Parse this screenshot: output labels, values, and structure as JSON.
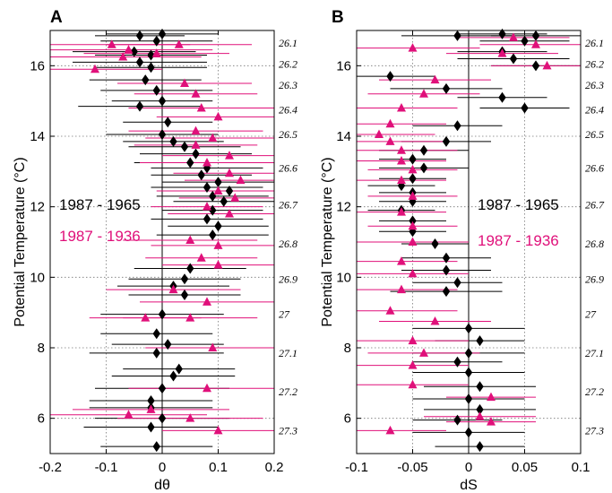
{
  "colors": {
    "black": "#000000",
    "magenta": "#e0107a"
  },
  "chart_data": [
    {
      "type": "scatter",
      "panel_label": "A",
      "xlabel": "dθ",
      "ylabel": "Potential Temperature (°C)",
      "xlim": [
        -0.2,
        0.2
      ],
      "ylim": [
        5,
        17
      ],
      "xticks": [
        "-0.2",
        "-0.1",
        "0",
        "0.1",
        "0.2"
      ],
      "yticks": [
        "6",
        "8",
        "10",
        "12",
        "14",
        "16"
      ],
      "density_labels": [
        {
          "label": "26.1",
          "y": 16.65
        },
        {
          "label": "26.2",
          "y": 16.05
        },
        {
          "label": "26.3",
          "y": 15.45
        },
        {
          "label": "26.4",
          "y": 14.75
        },
        {
          "label": "26.5",
          "y": 14.05
        },
        {
          "label": "26.6",
          "y": 13.1
        },
        {
          "label": "26.7",
          "y": 12.05
        },
        {
          "label": "26.8",
          "y": 10.95
        },
        {
          "label": "26.9",
          "y": 9.95
        },
        {
          "label": "27",
          "y": 8.95
        },
        {
          "label": "27.1",
          "y": 7.85
        },
        {
          "label": "27.2",
          "y": 6.75
        },
        {
          "label": "27.3",
          "y": 5.65
        }
      ],
      "series": [
        {
          "name": "1987 - 1965",
          "color": "#000000",
          "marker": "diamond",
          "points": [
            {
              "x": -0.04,
              "y": 16.85,
              "e": 0.08
            },
            {
              "x": 0.0,
              "y": 16.9,
              "e": 0.1
            },
            {
              "x": -0.01,
              "y": 16.7,
              "e": 0.1
            },
            {
              "x": -0.05,
              "y": 16.4,
              "e": 0.11
            },
            {
              "x": -0.02,
              "y": 16.3,
              "e": 0.1
            },
            {
              "x": -0.04,
              "y": 16.1,
              "e": 0.12
            },
            {
              "x": -0.02,
              "y": 15.95,
              "e": 0.1
            },
            {
              "x": -0.03,
              "y": 15.6,
              "e": 0.1
            },
            {
              "x": -0.01,
              "y": 15.3,
              "e": 0.1
            },
            {
              "x": 0.0,
              "y": 15.0,
              "e": 0.09
            },
            {
              "x": -0.04,
              "y": 14.85,
              "e": 0.11
            },
            {
              "x": 0.01,
              "y": 14.4,
              "e": 0.08
            },
            {
              "x": 0.0,
              "y": 14.05,
              "e": 0.1
            },
            {
              "x": 0.02,
              "y": 13.85,
              "e": 0.09
            },
            {
              "x": 0.04,
              "y": 13.7,
              "e": 0.1
            },
            {
              "x": 0.06,
              "y": 13.5,
              "e": 0.1
            },
            {
              "x": 0.05,
              "y": 13.25,
              "e": 0.1
            },
            {
              "x": 0.08,
              "y": 13.1,
              "e": 0.1
            },
            {
              "x": 0.07,
              "y": 12.9,
              "e": 0.09
            },
            {
              "x": 0.1,
              "y": 12.7,
              "e": 0.1
            },
            {
              "x": 0.08,
              "y": 12.55,
              "e": 0.1
            },
            {
              "x": 0.12,
              "y": 12.45,
              "e": 0.09
            },
            {
              "x": 0.09,
              "y": 12.3,
              "e": 0.1
            },
            {
              "x": 0.11,
              "y": 12.15,
              "e": 0.09
            },
            {
              "x": 0.09,
              "y": 11.9,
              "e": 0.09
            },
            {
              "x": 0.08,
              "y": 11.65,
              "e": 0.1
            },
            {
              "x": 0.1,
              "y": 11.45,
              "e": 0.09
            },
            {
              "x": 0.09,
              "y": 11.2,
              "e": 0.1
            },
            {
              "x": 0.05,
              "y": 10.25,
              "e": 0.1
            },
            {
              "x": 0.04,
              "y": 9.95,
              "e": 0.1
            },
            {
              "x": 0.02,
              "y": 9.75,
              "e": 0.1
            },
            {
              "x": 0.04,
              "y": 9.5,
              "e": 0.1
            },
            {
              "x": 0.0,
              "y": 8.95,
              "e": 0.11
            },
            {
              "x": -0.01,
              "y": 8.4,
              "e": 0.1
            },
            {
              "x": 0.01,
              "y": 8.1,
              "e": 0.1
            },
            {
              "x": -0.01,
              "y": 7.85,
              "e": 0.12
            },
            {
              "x": 0.03,
              "y": 7.4,
              "e": 0.1
            },
            {
              "x": 0.02,
              "y": 7.2,
              "e": 0.11
            },
            {
              "x": 0.0,
              "y": 6.85,
              "e": 0.12
            },
            {
              "x": -0.02,
              "y": 6.5,
              "e": 0.11
            },
            {
              "x": -0.02,
              "y": 6.3,
              "e": 0.11
            },
            {
              "x": 0.0,
              "y": 6.0,
              "e": 0.12
            },
            {
              "x": -0.02,
              "y": 5.75,
              "e": 0.12
            },
            {
              "x": -0.01,
              "y": 5.2,
              "e": 0.1
            }
          ]
        },
        {
          "name": "1987 - 1936",
          "color": "#e0107a",
          "marker": "triangle",
          "points": [
            {
              "x": -0.09,
              "y": 16.6,
              "e": 0.14
            },
            {
              "x": -0.06,
              "y": 16.45,
              "e": 0.15
            },
            {
              "x": -0.01,
              "y": 16.35,
              "e": 0.13
            },
            {
              "x": -0.07,
              "y": 16.25,
              "e": 0.14
            },
            {
              "x": 0.03,
              "y": 16.6,
              "e": 0.13
            },
            {
              "x": -0.12,
              "y": 15.9,
              "e": 0.12
            },
            {
              "x": 0.04,
              "y": 15.5,
              "e": 0.12
            },
            {
              "x": 0.06,
              "y": 15.2,
              "e": 0.11
            },
            {
              "x": 0.07,
              "y": 14.8,
              "e": 0.13
            },
            {
              "x": 0.1,
              "y": 14.55,
              "e": 0.11
            },
            {
              "x": 0.06,
              "y": 14.15,
              "e": 0.12
            },
            {
              "x": 0.09,
              "y": 13.95,
              "e": 0.12
            },
            {
              "x": 0.06,
              "y": 13.75,
              "e": 0.11
            },
            {
              "x": 0.12,
              "y": 13.45,
              "e": 0.12
            },
            {
              "x": 0.08,
              "y": 13.25,
              "e": 0.12
            },
            {
              "x": 0.12,
              "y": 12.95,
              "e": 0.1
            },
            {
              "x": 0.14,
              "y": 12.75,
              "e": 0.1
            },
            {
              "x": 0.1,
              "y": 12.45,
              "e": 0.11
            },
            {
              "x": 0.13,
              "y": 12.25,
              "e": 0.1
            },
            {
              "x": 0.08,
              "y": 12.0,
              "e": 0.1
            },
            {
              "x": 0.12,
              "y": 11.8,
              "e": 0.11
            },
            {
              "x": 0.05,
              "y": 11.05,
              "e": 0.12
            },
            {
              "x": 0.1,
              "y": 10.9,
              "e": 0.12
            },
            {
              "x": 0.07,
              "y": 10.55,
              "e": 0.1
            },
            {
              "x": 0.1,
              "y": 10.35,
              "e": 0.1
            },
            {
              "x": 0.02,
              "y": 9.65,
              "e": 0.12
            },
            {
              "x": 0.08,
              "y": 9.3,
              "e": 0.12
            },
            {
              "x": -0.03,
              "y": 8.85,
              "e": 0.1
            },
            {
              "x": 0.05,
              "y": 8.85,
              "e": 0.12
            },
            {
              "x": 0.09,
              "y": 8.0,
              "e": 0.12
            },
            {
              "x": 0.08,
              "y": 6.85,
              "e": 0.14
            },
            {
              "x": -0.02,
              "y": 6.25,
              "e": 0.14
            },
            {
              "x": 0.05,
              "y": 6.0,
              "e": 0.13
            },
            {
              "x": -0.06,
              "y": 6.1,
              "e": 0.14
            },
            {
              "x": 0.1,
              "y": 5.65,
              "e": 0.1
            }
          ]
        }
      ]
    },
    {
      "type": "scatter",
      "panel_label": "B",
      "xlabel": "dS",
      "ylabel": "Potential Temperature (°C)",
      "xlim": [
        -0.1,
        0.1
      ],
      "ylim": [
        5,
        17
      ],
      "xticks": [
        "-0.1",
        "-0.05",
        "0",
        "0.05",
        "0.1"
      ],
      "yticks": [
        "6",
        "8",
        "10",
        "12",
        "14",
        "16"
      ],
      "density_labels": [
        {
          "label": "26.1",
          "y": 16.65
        },
        {
          "label": "26.2",
          "y": 16.05
        },
        {
          "label": "26.3",
          "y": 15.45
        },
        {
          "label": "26.4",
          "y": 14.75
        },
        {
          "label": "26.5",
          "y": 14.05
        },
        {
          "label": "26.6",
          "y": 13.1
        },
        {
          "label": "26.7",
          "y": 12.05
        },
        {
          "label": "26.8",
          "y": 10.95
        },
        {
          "label": "26.9",
          "y": 9.95
        },
        {
          "label": "27",
          "y": 8.95
        },
        {
          "label": "27.1",
          "y": 7.85
        },
        {
          "label": "27.2",
          "y": 6.75
        },
        {
          "label": "27.3",
          "y": 5.65
        }
      ],
      "series": [
        {
          "name": "1987 - 1965",
          "color": "#000000",
          "marker": "diamond",
          "points": [
            {
              "x": 0.06,
              "y": 16.85,
              "e": 0.04
            },
            {
              "x": 0.03,
              "y": 16.9,
              "e": 0.04
            },
            {
              "x": -0.01,
              "y": 16.85,
              "e": 0.05
            },
            {
              "x": 0.05,
              "y": 16.7,
              "e": 0.04
            },
            {
              "x": 0.03,
              "y": 16.4,
              "e": 0.04
            },
            {
              "x": 0.04,
              "y": 16.2,
              "e": 0.05
            },
            {
              "x": 0.06,
              "y": 16.0,
              "e": 0.04
            },
            {
              "x": -0.07,
              "y": 15.7,
              "e": 0.04
            },
            {
              "x": -0.02,
              "y": 15.35,
              "e": 0.05
            },
            {
              "x": 0.03,
              "y": 15.1,
              "e": 0.04
            },
            {
              "x": 0.05,
              "y": 14.8,
              "e": 0.04
            },
            {
              "x": -0.01,
              "y": 14.3,
              "e": 0.04
            },
            {
              "x": -0.02,
              "y": 13.85,
              "e": 0.04
            },
            {
              "x": -0.04,
              "y": 13.6,
              "e": 0.04
            },
            {
              "x": -0.05,
              "y": 13.35,
              "e": 0.03
            },
            {
              "x": -0.04,
              "y": 13.1,
              "e": 0.04
            },
            {
              "x": -0.05,
              "y": 12.8,
              "e": 0.03
            },
            {
              "x": -0.06,
              "y": 12.6,
              "e": 0.03
            },
            {
              "x": -0.05,
              "y": 12.4,
              "e": 0.03
            },
            {
              "x": -0.05,
              "y": 12.15,
              "e": 0.03
            },
            {
              "x": -0.06,
              "y": 11.9,
              "e": 0.03
            },
            {
              "x": -0.05,
              "y": 11.6,
              "e": 0.03
            },
            {
              "x": -0.05,
              "y": 11.3,
              "e": 0.03
            },
            {
              "x": -0.03,
              "y": 10.95,
              "e": 0.03
            },
            {
              "x": -0.02,
              "y": 10.55,
              "e": 0.04
            },
            {
              "x": -0.02,
              "y": 10.2,
              "e": 0.04
            },
            {
              "x": -0.01,
              "y": 9.85,
              "e": 0.04
            },
            {
              "x": -0.02,
              "y": 9.6,
              "e": 0.05
            },
            {
              "x": 0.0,
              "y": 8.55,
              "e": 0.05
            },
            {
              "x": 0.01,
              "y": 8.2,
              "e": 0.04
            },
            {
              "x": 0.0,
              "y": 7.85,
              "e": 0.05
            },
            {
              "x": -0.01,
              "y": 7.6,
              "e": 0.04
            },
            {
              "x": 0.0,
              "y": 7.3,
              "e": 0.05
            },
            {
              "x": 0.01,
              "y": 6.9,
              "e": 0.05
            },
            {
              "x": 0.0,
              "y": 6.55,
              "e": 0.05
            },
            {
              "x": 0.01,
              "y": 6.25,
              "e": 0.05
            },
            {
              "x": -0.01,
              "y": 5.95,
              "e": 0.04
            },
            {
              "x": 0.0,
              "y": 5.6,
              "e": 0.05
            },
            {
              "x": 0.01,
              "y": 5.2,
              "e": 0.04
            }
          ]
        },
        {
          "name": "1987 - 1936",
          "color": "#e0107a",
          "marker": "triangle",
          "points": [
            {
              "x": 0.04,
              "y": 16.8,
              "e": 0.05
            },
            {
              "x": 0.06,
              "y": 16.6,
              "e": 0.05
            },
            {
              "x": 0.03,
              "y": 16.35,
              "e": 0.05
            },
            {
              "x": -0.05,
              "y": 16.5,
              "e": 0.06
            },
            {
              "x": 0.07,
              "y": 16.0,
              "e": 0.05
            },
            {
              "x": -0.03,
              "y": 15.6,
              "e": 0.05
            },
            {
              "x": -0.04,
              "y": 15.2,
              "e": 0.05
            },
            {
              "x": -0.06,
              "y": 14.8,
              "e": 0.05
            },
            {
              "x": -0.07,
              "y": 14.35,
              "e": 0.05
            },
            {
              "x": -0.08,
              "y": 14.05,
              "e": 0.05
            },
            {
              "x": -0.07,
              "y": 13.85,
              "e": 0.05
            },
            {
              "x": -0.06,
              "y": 13.6,
              "e": 0.05
            },
            {
              "x": -0.06,
              "y": 13.3,
              "e": 0.04
            },
            {
              "x": -0.05,
              "y": 13.05,
              "e": 0.04
            },
            {
              "x": -0.06,
              "y": 12.75,
              "e": 0.04
            },
            {
              "x": -0.05,
              "y": 12.3,
              "e": 0.04
            },
            {
              "x": -0.06,
              "y": 11.85,
              "e": 0.04
            },
            {
              "x": -0.05,
              "y": 11.45,
              "e": 0.04
            },
            {
              "x": -0.05,
              "y": 11.0,
              "e": 0.05
            },
            {
              "x": -0.06,
              "y": 10.45,
              "e": 0.05
            },
            {
              "x": -0.05,
              "y": 10.1,
              "e": 0.05
            },
            {
              "x": -0.06,
              "y": 9.65,
              "e": 0.05
            },
            {
              "x": -0.07,
              "y": 9.05,
              "e": 0.06
            },
            {
              "x": -0.03,
              "y": 8.75,
              "e": 0.05
            },
            {
              "x": -0.05,
              "y": 8.2,
              "e": 0.05
            },
            {
              "x": -0.04,
              "y": 7.85,
              "e": 0.05
            },
            {
              "x": -0.05,
              "y": 7.5,
              "e": 0.05
            },
            {
              "x": -0.05,
              "y": 6.95,
              "e": 0.05
            },
            {
              "x": 0.02,
              "y": 6.6,
              "e": 0.04
            },
            {
              "x": 0.01,
              "y": 6.05,
              "e": 0.05
            },
            {
              "x": -0.07,
              "y": 5.65,
              "e": 0.05
            },
            {
              "x": 0.02,
              "y": 5.9,
              "e": 0.04
            }
          ]
        }
      ]
    }
  ]
}
